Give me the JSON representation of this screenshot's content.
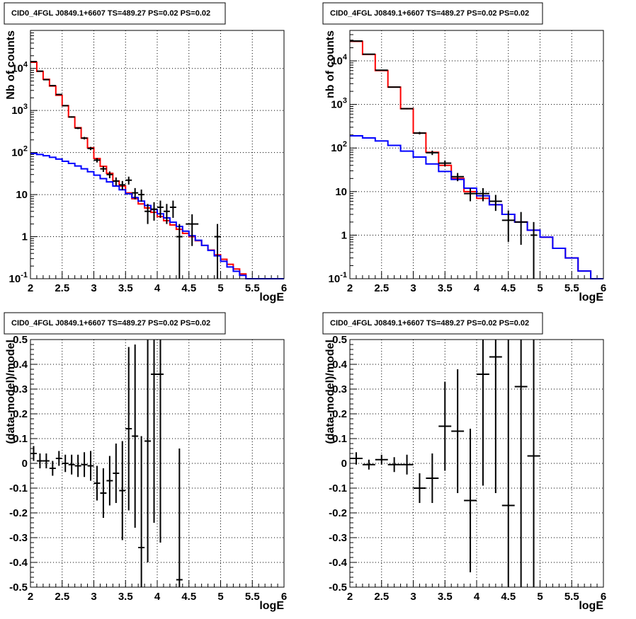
{
  "chart_data": [
    {
      "type": "line",
      "title": "CID0_4FGL J0849.1+6607 TS=489.27 PS=0.02 PS=0.02",
      "xlabel": "logE",
      "ylabel": "Nb of counts",
      "xlim": [
        2,
        6
      ],
      "ylim": [
        0.1,
        80000
      ],
      "yscale": "log",
      "grid": true,
      "xticks": [
        "2",
        "2.5",
        "3",
        "3.5",
        "4",
        "4.5",
        "5",
        "5.5",
        "6"
      ],
      "yticks": [
        {
          "v": 0.1,
          "base": "10",
          "exp": "-1"
        },
        {
          "v": 1,
          "label": "1"
        },
        {
          "v": 10,
          "label": "10"
        },
        {
          "v": 100,
          "base": "10",
          "exp": "2"
        },
        {
          "v": 1000,
          "base": "10",
          "exp": "3"
        },
        {
          "v": 10000,
          "base": "10",
          "exp": "4"
        }
      ],
      "bin_edges": [
        2,
        2.1,
        2.2,
        2.3,
        2.4,
        2.5,
        2.6,
        2.7,
        2.8,
        2.9,
        3,
        3.1,
        3.2,
        3.3,
        3.4,
        3.5,
        3.6,
        3.7,
        3.8,
        3.9,
        4,
        4.1,
        4.2,
        4.3,
        4.4,
        4.5,
        4.6,
        4.7,
        4.8,
        4.9,
        5,
        5.1,
        5.2,
        5.3,
        5.4,
        5.5,
        5.6,
        5.7,
        5.8,
        5.9,
        6
      ],
      "series": [
        {
          "color": "#ff0000",
          "style": "step",
          "values": [
            14000,
            8500,
            5500,
            3800,
            2300,
            1300,
            700,
            390,
            220,
            130,
            72,
            47,
            32,
            21,
            16,
            11,
            8,
            6,
            4.8,
            3.8,
            3,
            2.4,
            1.9,
            1.5,
            1.2,
            1.0,
            0.8,
            0.62,
            0.48,
            0.37,
            0.29,
            0.22,
            0.17,
            0.13,
            0.1,
            0.1,
            0.1,
            0.1,
            0.1,
            0.1
          ]
        },
        {
          "color": "#0000ff",
          "style": "step",
          "values": [
            95,
            90,
            84,
            77,
            70,
            62,
            55,
            48,
            41,
            35,
            29,
            24,
            20,
            16,
            13,
            10.5,
            8.5,
            7,
            5.5,
            4.4,
            3.5,
            2.8,
            2.2,
            1.75,
            1.35,
            1.05,
            0.82,
            0.62,
            0.47,
            0.35,
            0.26,
            0.19,
            0.15,
            0.12,
            0.1,
            0.1,
            0.1,
            0.1,
            0.1,
            0.1
          ]
        },
        {
          "color": "#000000",
          "style": "errorbar",
          "points": [
            [
              2.05,
              14500,
              0.05,
              120
            ],
            [
              2.15,
              8600,
              0.05,
              93
            ],
            [
              2.25,
              5400,
              0.05,
              73
            ],
            [
              2.35,
              3900,
              0.05,
              62
            ],
            [
              2.45,
              2400,
              0.05,
              49
            ],
            [
              2.55,
              1300,
              0.05,
              36
            ],
            [
              2.65,
              700,
              0.05,
              26
            ],
            [
              2.75,
              380,
              0.05,
              19
            ],
            [
              2.85,
              220,
              0.05,
              15
            ],
            [
              2.95,
              125,
              0.05,
              11
            ],
            [
              3.05,
              66,
              0.05,
              8
            ],
            [
              3.15,
              41,
              0.05,
              6.4
            ],
            [
              3.25,
              30,
              0.05,
              5.5
            ],
            [
              3.35,
              21,
              0.05,
              4.6
            ],
            [
              3.45,
              17,
              0.05,
              4.1
            ],
            [
              3.55,
              22,
              0.05,
              4.7
            ],
            [
              3.65,
              11,
              0.05,
              3.3
            ],
            [
              3.75,
              10,
              0.05,
              3.2
            ],
            [
              3.85,
              4,
              0.05,
              2
            ],
            [
              3.95,
              4.5,
              0.05,
              2.1
            ],
            [
              4.05,
              5,
              0.05,
              2.2
            ],
            [
              4.15,
              4,
              0.05,
              2
            ],
            [
              4.25,
              5,
              0.05,
              2.2
            ],
            [
              4.35,
              1,
              0.05,
              1
            ],
            [
              4.55,
              2,
              0.1,
              1.4
            ],
            [
              4.95,
              1,
              0.05,
              1
            ]
          ]
        }
      ]
    },
    {
      "type": "line",
      "title": "CID0_4FGL J0849.1+6607 TS=489.27 PS=0.02 PS=0.02",
      "xlabel": "logE",
      "ylabel": "nb of counts",
      "xlim": [
        2,
        6
      ],
      "ylim": [
        0.1,
        50000
      ],
      "yscale": "log",
      "grid": true,
      "xticks": [
        "2",
        "2.5",
        "3",
        "3.5",
        "4",
        "4.5",
        "5",
        "5.5",
        "6"
      ],
      "yticks": [
        {
          "v": 0.1,
          "base": "10",
          "exp": "-1"
        },
        {
          "v": 1,
          "label": "1"
        },
        {
          "v": 10,
          "label": "10"
        },
        {
          "v": 100,
          "base": "10",
          "exp": "2"
        },
        {
          "v": 1000,
          "base": "10",
          "exp": "3"
        },
        {
          "v": 10000,
          "base": "10",
          "exp": "4"
        }
      ],
      "bin_edges": [
        2,
        2.2,
        2.4,
        2.6,
        2.8,
        3,
        3.2,
        3.4,
        3.6,
        3.8,
        4,
        4.2,
        4.4,
        4.6,
        4.8,
        5,
        5.2,
        5.4,
        5.6,
        5.8,
        6
      ],
      "series": [
        {
          "color": "#ff0000",
          "style": "step",
          "values": [
            28000,
            14000,
            6000,
            2500,
            800,
            220,
            80,
            40,
            20,
            10,
            7,
            5,
            3,
            2,
            1.3,
            0.9,
            0.5,
            0.3,
            0.15,
            0.1
          ]
        },
        {
          "color": "#0000ff",
          "style": "step",
          "values": [
            190,
            170,
            145,
            115,
            85,
            62,
            43,
            29,
            19,
            12,
            8,
            5,
            3,
            2,
            1.3,
            0.9,
            0.5,
            0.3,
            0.15,
            0.1
          ]
        },
        {
          "color": "#000000",
          "style": "errorbar",
          "points": [
            [
              2.1,
              28500,
              0.1,
              170
            ],
            [
              2.3,
              14200,
              0.1,
              120
            ],
            [
              2.5,
              6100,
              0.1,
              78
            ],
            [
              2.7,
              2500,
              0.1,
              50
            ],
            [
              2.9,
              800,
              0.1,
              28
            ],
            [
              3.1,
              220,
              0.1,
              15
            ],
            [
              3.3,
              78,
              0.1,
              9
            ],
            [
              3.5,
              45,
              0.1,
              6.7
            ],
            [
              3.7,
              22,
              0.1,
              4.7
            ],
            [
              3.9,
              9,
              0.1,
              3
            ],
            [
              4.1,
              9,
              0.1,
              3
            ],
            [
              4.3,
              6,
              0.1,
              2.4
            ],
            [
              4.5,
              2.2,
              0.1,
              1.5
            ],
            [
              4.7,
              2,
              0.1,
              1.4
            ],
            [
              4.9,
              1,
              0.05,
              1
            ]
          ]
        }
      ]
    },
    {
      "type": "scatter",
      "title": "CID0_4FGL J0849.1+6607 TS=489.27 PS=0.02 PS=0.02",
      "xlabel": "logE",
      "ylabel": "(data-model)/model",
      "xlim": [
        2,
        6
      ],
      "ylim": [
        -0.5,
        0.5
      ],
      "grid": true,
      "xticks": [
        "2",
        "2.5",
        "3",
        "3.5",
        "4",
        "4.5",
        "5",
        "5.5",
        "6"
      ],
      "yticks": [
        "-0.5",
        "-0.4",
        "-0.3",
        "-0.2",
        "-0.1",
        "0",
        "0.1",
        "0.2",
        "0.3",
        "0.4",
        "0.5"
      ],
      "series": [
        {
          "color": "#000000",
          "style": "errorbar",
          "points": [
            [
              2.05,
              0.04,
              0.05,
              0.03
            ],
            [
              2.15,
              0.01,
              0.05,
              0.03
            ],
            [
              2.25,
              0.01,
              0.05,
              0.03
            ],
            [
              2.35,
              -0.02,
              0.05,
              0.03
            ],
            [
              2.45,
              0.02,
              0.05,
              0.03
            ],
            [
              2.55,
              0.0,
              0.05,
              0.035
            ],
            [
              2.65,
              -0.005,
              0.05,
              0.04
            ],
            [
              2.75,
              -0.01,
              0.05,
              0.045
            ],
            [
              2.85,
              -0.005,
              0.05,
              0.05
            ],
            [
              2.95,
              -0.01,
              0.05,
              0.06
            ],
            [
              3.05,
              -0.08,
              0.05,
              0.07
            ],
            [
              3.15,
              -0.12,
              0.05,
              0.1
            ],
            [
              3.25,
              -0.07,
              0.05,
              0.1
            ],
            [
              3.35,
              -0.04,
              0.05,
              0.12
            ],
            [
              3.45,
              -0.11,
              0.05,
              0.2
            ],
            [
              3.55,
              0.14,
              0.05,
              0.33
            ],
            [
              3.65,
              0.11,
              0.05,
              0.37
            ],
            [
              3.75,
              -0.34,
              0.05,
              0.45
            ],
            [
              3.85,
              0.09,
              0.05,
              0.49
            ],
            [
              3.95,
              0.36,
              0.05,
              0.6
            ],
            [
              4.05,
              0.36,
              0.05,
              0.68
            ],
            [
              4.35,
              -0.47,
              0.05,
              0.53
            ]
          ]
        }
      ]
    },
    {
      "type": "scatter",
      "title": "CID0_4FGL J0849.1+6607 TS=489.27 PS=0.02 PS=0.02",
      "xlabel": "logE",
      "ylabel": "(data-model)/model",
      "xlim": [
        2,
        6
      ],
      "ylim": [
        -0.5,
        0.5
      ],
      "grid": true,
      "xticks": [
        "2",
        "2.5",
        "3",
        "3.5",
        "4",
        "4.5",
        "5",
        "5.5",
        "6"
      ],
      "yticks": [
        "-0.5",
        "-0.4",
        "-0.3",
        "-0.2",
        "-0.1",
        "0",
        "0.1",
        "0.2",
        "0.3",
        "0.4",
        "0.5"
      ],
      "series": [
        {
          "color": "#000000",
          "style": "errorbar",
          "points": [
            [
              2.1,
              0.02,
              0.1,
              0.025
            ],
            [
              2.3,
              -0.005,
              0.1,
              0.02
            ],
            [
              2.5,
              0.015,
              0.1,
              0.02
            ],
            [
              2.7,
              -0.005,
              0.1,
              0.03
            ],
            [
              2.9,
              -0.005,
              0.1,
              0.04
            ],
            [
              3.1,
              -0.1,
              0.1,
              0.06
            ],
            [
              3.3,
              -0.06,
              0.1,
              0.1
            ],
            [
              3.5,
              0.15,
              0.1,
              0.18
            ],
            [
              3.7,
              0.13,
              0.1,
              0.25
            ],
            [
              3.9,
              -0.15,
              0.1,
              0.29
            ],
            [
              4.1,
              0.36,
              0.1,
              0.45
            ],
            [
              4.3,
              0.43,
              0.1,
              0.55
            ],
            [
              4.5,
              -0.17,
              0.1,
              0.9
            ],
            [
              4.7,
              0.31,
              0.1,
              1.0
            ],
            [
              4.9,
              0.03,
              0.1,
              1.0
            ]
          ]
        }
      ]
    }
  ]
}
